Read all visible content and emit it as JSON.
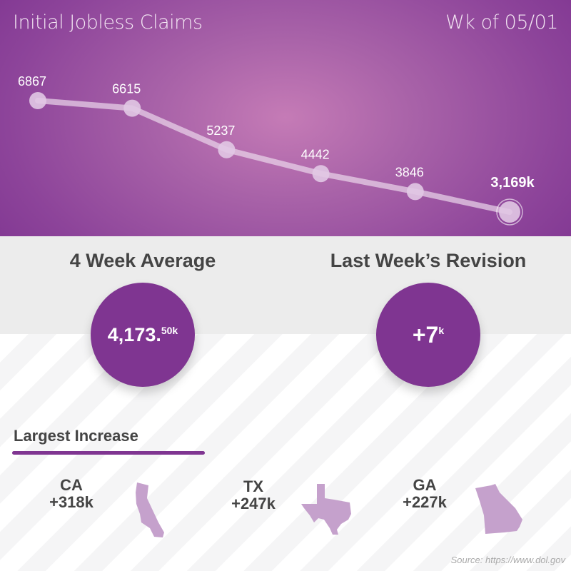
{
  "header": {
    "title": "Initial Jobless Claims",
    "week": "Wk of 05/01"
  },
  "chart_data": {
    "type": "line",
    "values": [
      6867,
      6615,
      5237,
      4442,
      3846,
      3169
    ],
    "labels": [
      "6867",
      "6615",
      "5237",
      "4442",
      "3846",
      "3,169k"
    ],
    "grid": false,
    "colors": {
      "line": "#e6cfe6",
      "background": "#9b4ea3"
    }
  },
  "stats": {
    "avg_title": "4 Week Average",
    "avg_value": "4,173.",
    "avg_sup": "50k",
    "rev_title": "Last Week’s Revision",
    "rev_value": "+7",
    "rev_sup": "k"
  },
  "largest": {
    "title": "Largest Increase",
    "states": [
      {
        "code": "CA",
        "value": "+318k"
      },
      {
        "code": "TX",
        "value": "+247k"
      },
      {
        "code": "GA",
        "value": "+227k"
      }
    ]
  },
  "source": "Source: https://www.dol.gov",
  "colors": {
    "accent": "#7f3591",
    "state": "#c5a1cc"
  }
}
